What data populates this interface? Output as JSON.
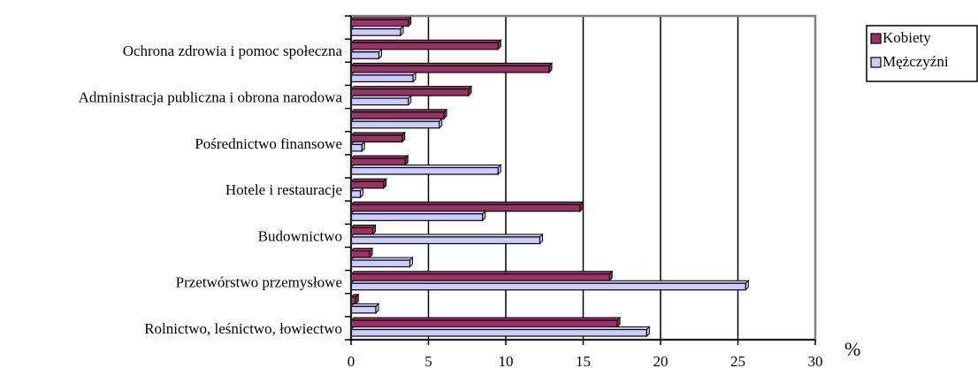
{
  "chart_data": {
    "type": "bar",
    "orientation": "horizontal",
    "title": "",
    "xlabel": "%",
    "ylabel": "",
    "xlim": [
      0,
      30
    ],
    "x_ticks": [
      "0",
      "5",
      "10",
      "15",
      "20",
      "25",
      "30"
    ],
    "grid": "vertical lines at major ticks",
    "legend_position": "top-right",
    "colors": {
      "Kobiety": "#993366",
      "Mężczyźni": "#ccccff"
    },
    "categories": [
      "Rolnictwo, leśnictwo, łowiectwo",
      "",
      "Przetwórstwo przemysłowe",
      "",
      "Budownictwo",
      "",
      "Hotele i restauracje",
      "",
      "Pośrednictwo  finansowe",
      "",
      "Administracja publiczna i obrona narodowa",
      "",
      "Ochrona zdrowia i pomoc społeczna",
      ""
    ],
    "series": [
      {
        "name": "Kobiety",
        "values": [
          17.2,
          0.3,
          16.7,
          1.2,
          1.4,
          14.8,
          2.1,
          3.5,
          3.3,
          6.0,
          7.6,
          12.8,
          9.5,
          3.7
        ]
      },
      {
        "name": "Mężczyźni",
        "values": [
          19.1,
          1.6,
          25.5,
          3.8,
          12.2,
          8.5,
          0.6,
          9.5,
          0.7,
          5.7,
          3.7,
          4.0,
          1.8,
          3.2
        ]
      }
    ]
  }
}
